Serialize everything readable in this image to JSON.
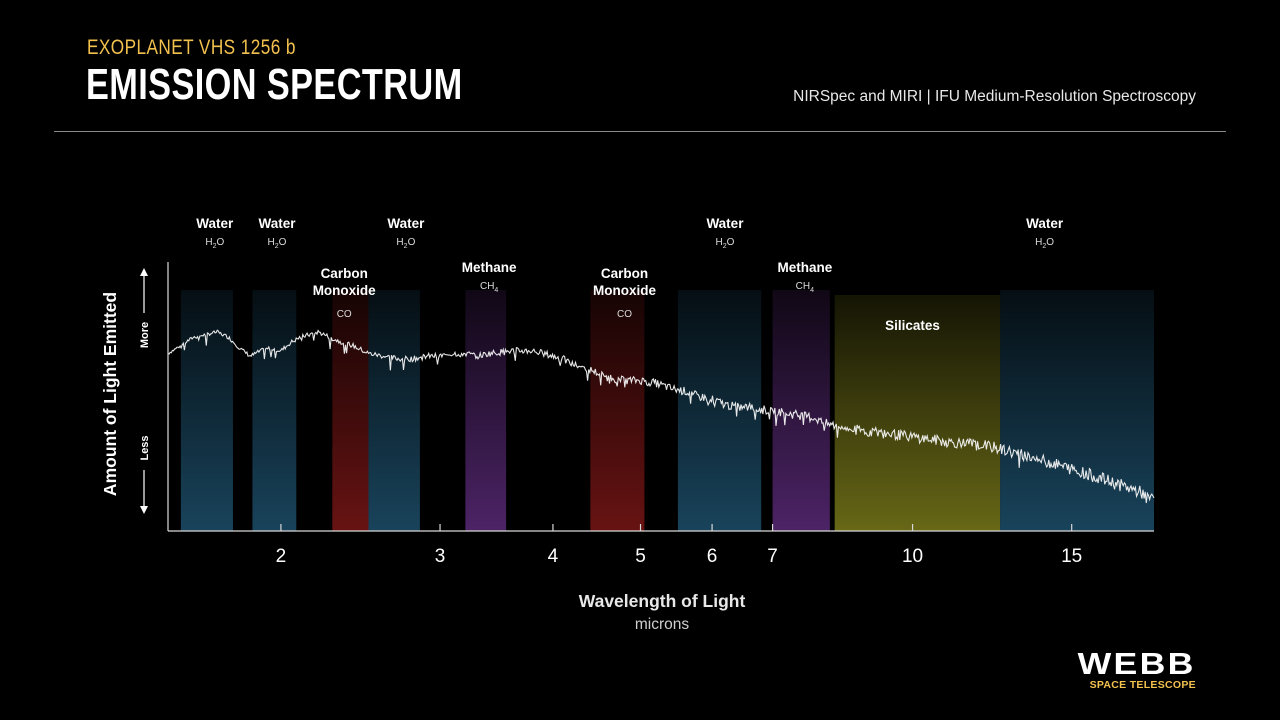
{
  "header": {
    "supertitle": "EXOPLANET VHS 1256 b",
    "title": "EMISSION SPECTRUM",
    "instrument": "NIRSpec and MIRI | IFU Medium-Resolution Spectroscopy"
  },
  "logo": {
    "name": "WEBB",
    "tagline": "SPACE TELESCOPE"
  },
  "colors": {
    "water": "#1d4f6b",
    "carbon_monoxide": "#7a1616",
    "methane": "#5a2a78",
    "silicates": "#8a8a1e",
    "accent": "#f2c14e"
  },
  "chart_data": {
    "type": "line",
    "xlabel": "Wavelength of Light",
    "xunit": "microns",
    "ylabel": "Amount of Light Emitted",
    "y_more": "More",
    "y_less": "Less",
    "xscale": "log",
    "xlim": [
      1.5,
      18.5
    ],
    "ylim": [
      0,
      1
    ],
    "x_ticks": [
      2,
      3,
      4,
      5,
      6,
      7,
      10,
      15
    ],
    "grid": false,
    "series": [
      {
        "x": [
          1.5,
          1.6,
          1.7,
          1.75,
          1.8,
          1.85,
          1.9,
          1.95,
          2.0,
          2.05,
          2.1,
          2.2,
          2.3,
          2.4,
          2.5,
          2.6,
          2.7,
          2.8,
          2.9,
          3.0,
          3.1,
          3.2,
          3.3,
          3.4,
          3.6,
          3.8,
          4.0,
          4.1,
          4.2,
          4.4,
          4.6,
          4.8,
          5.0,
          5.2,
          5.4,
          5.6,
          5.8,
          6.0,
          6.2,
          6.4,
          6.6,
          6.8,
          7.0,
          7.2,
          7.5,
          7.8,
          8.0,
          8.5,
          9.0,
          9.5,
          10.0,
          10.5,
          11.0,
          12.0,
          13.0,
          14.0,
          15.0,
          16.0,
          17.0,
          18.0,
          18.5
        ],
        "y": [
          0.66,
          0.72,
          0.74,
          0.72,
          0.68,
          0.65,
          0.67,
          0.68,
          0.67,
          0.7,
          0.72,
          0.74,
          0.71,
          0.69,
          0.66,
          0.65,
          0.64,
          0.64,
          0.65,
          0.65,
          0.66,
          0.66,
          0.65,
          0.66,
          0.67,
          0.67,
          0.65,
          0.64,
          0.62,
          0.6,
          0.57,
          0.56,
          0.56,
          0.55,
          0.53,
          0.52,
          0.5,
          0.49,
          0.47,
          0.46,
          0.46,
          0.45,
          0.45,
          0.44,
          0.43,
          0.42,
          0.4,
          0.38,
          0.37,
          0.36,
          0.35,
          0.34,
          0.33,
          0.32,
          0.29,
          0.26,
          0.23,
          0.2,
          0.17,
          0.14,
          0.12
        ]
      }
    ],
    "bands": [
      {
        "name": "Water",
        "formula": "H2O",
        "kind": "water",
        "x0": 1.55,
        "x1": 1.77
      },
      {
        "name": "Water",
        "formula": "H2O",
        "kind": "water",
        "x0": 1.86,
        "x1": 2.08
      },
      {
        "name": "Carbon Monoxide",
        "formula": "CO",
        "kind": "carbon_monoxide",
        "x0": 2.28,
        "x1": 2.5
      },
      {
        "name": "Water",
        "formula": "H2O",
        "kind": "water",
        "x0": 2.5,
        "x1": 2.85
      },
      {
        "name": "Methane",
        "formula": "CH4",
        "kind": "methane",
        "x0": 3.2,
        "x1": 3.55
      },
      {
        "name": "Carbon Monoxide",
        "formula": "CO",
        "kind": "carbon_monoxide",
        "x0": 4.4,
        "x1": 5.05
      },
      {
        "name": "Water",
        "formula": "H2O",
        "kind": "water",
        "x0": 5.5,
        "x1": 6.8
      },
      {
        "name": "Methane",
        "formula": "CH4",
        "kind": "methane",
        "x0": 7.0,
        "x1": 8.1
      },
      {
        "name": "Silicates",
        "formula": "",
        "kind": "silicates",
        "x0": 8.2,
        "x1": 12.5
      },
      {
        "name": "Water",
        "formula": "H2O",
        "kind": "water",
        "x0": 12.5,
        "x1": 18.5
      }
    ],
    "band_labels": [
      {
        "name": "Water",
        "formula": "H2O",
        "x": 1.69,
        "row": "top"
      },
      {
        "name": "Water",
        "formula": "H2O",
        "x": 1.98,
        "row": "top"
      },
      {
        "name": "Water",
        "formula": "H2O",
        "x": 2.75,
        "row": "top"
      },
      {
        "name": "Carbon Monoxide",
        "formula": "CO",
        "x": 2.35,
        "row": "mid2"
      },
      {
        "name": "Methane",
        "formula": "CH4",
        "x": 3.4,
        "row": "mid"
      },
      {
        "name": "Carbon Monoxide",
        "formula": "CO",
        "x": 4.8,
        "row": "mid2"
      },
      {
        "name": "Water",
        "formula": "H2O",
        "x": 6.2,
        "row": "top"
      },
      {
        "name": "Methane",
        "formula": "CH4",
        "x": 7.6,
        "row": "mid"
      },
      {
        "name": "Silicates",
        "formula": "",
        "x": 10.0,
        "row": "low"
      },
      {
        "name": "Water",
        "formula": "H2O",
        "x": 14.0,
        "row": "top"
      }
    ]
  }
}
